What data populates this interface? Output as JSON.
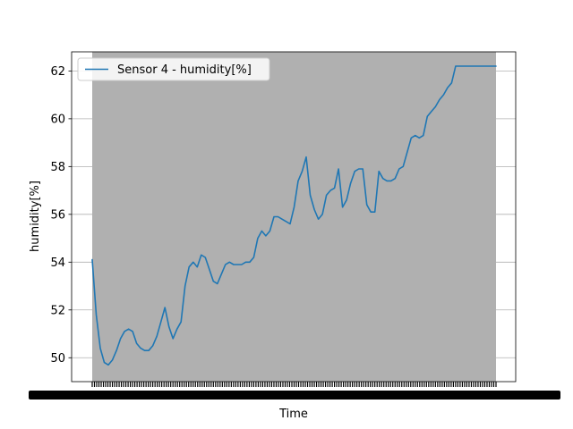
{
  "chart_data": {
    "type": "line",
    "title": "",
    "xlabel": "Time",
    "ylabel": "humidity[%]",
    "ylim": [
      49.0,
      62.8
    ],
    "yticks": [
      50,
      52,
      54,
      56,
      58,
      60,
      62
    ],
    "grid": "y",
    "legend": {
      "placement": "top-left",
      "entries": [
        "Sensor 4 -  humidity[%]"
      ]
    },
    "shaded_background": "#b0b0b0",
    "x_tick_labels_note": "dense overlapping labels",
    "series": [
      {
        "name": "Sensor 4 -  humidity[%]",
        "color": "#1f77b4",
        "x": [
          0,
          1,
          2,
          3,
          4,
          5,
          6,
          7,
          8,
          9,
          10,
          11,
          12,
          13,
          14,
          15,
          16,
          17,
          18,
          19,
          20,
          21,
          22,
          23,
          24,
          25,
          26,
          27,
          28,
          29,
          30,
          31,
          32,
          33,
          34,
          35,
          36,
          37,
          38,
          39,
          40,
          41,
          42,
          43,
          44,
          45,
          46,
          47,
          48,
          49,
          50,
          51,
          52,
          53,
          54,
          55,
          56,
          57,
          58,
          59,
          60,
          61,
          62,
          63,
          64,
          65,
          66,
          67,
          68,
          69,
          70,
          71,
          72,
          73,
          74,
          75,
          76,
          77,
          78,
          79,
          80,
          81,
          82,
          83,
          84,
          85,
          86,
          87,
          88,
          89,
          90,
          91,
          92,
          93,
          94,
          95,
          96,
          97,
          98,
          99,
          100
        ],
        "values": [
          54.1,
          51.8,
          50.4,
          49.8,
          49.7,
          49.9,
          50.3,
          50.8,
          51.1,
          51.2,
          51.1,
          50.6,
          50.4,
          50.3,
          50.3,
          50.5,
          50.9,
          51.5,
          52.1,
          51.3,
          50.8,
          51.2,
          51.5,
          53.0,
          53.8,
          54.0,
          53.8,
          54.3,
          54.2,
          53.7,
          53.2,
          53.1,
          53.5,
          53.9,
          54.0,
          53.9,
          53.9,
          53.9,
          54.0,
          54.0,
          54.2,
          55.0,
          55.3,
          55.1,
          55.3,
          55.9,
          55.9,
          55.8,
          55.7,
          55.6,
          56.3,
          57.4,
          57.8,
          58.4,
          56.8,
          56.2,
          55.8,
          56.0,
          56.8,
          57.0,
          57.1,
          57.9,
          56.3,
          56.6,
          57.3,
          57.8,
          57.9,
          57.9,
          56.4,
          56.1,
          56.1,
          57.8,
          57.5,
          57.4,
          57.4,
          57.5,
          57.9,
          58.0,
          58.6,
          59.2,
          59.3,
          59.2,
          59.3,
          60.1,
          60.3,
          60.5,
          60.8,
          61.0,
          61.3,
          61.5,
          62.2,
          62.2,
          62.2,
          62.2,
          62.2,
          62.2,
          62.2,
          62.2,
          62.2,
          62.2,
          62.2
        ]
      }
    ]
  }
}
